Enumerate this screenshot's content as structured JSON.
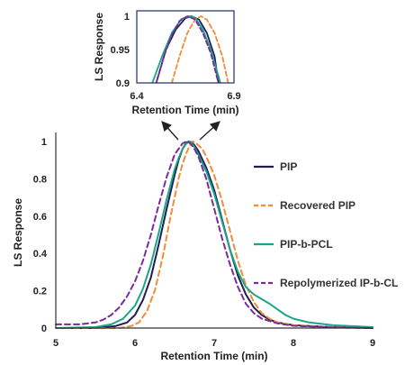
{
  "chart_data": [
    {
      "id": "main",
      "type": "line",
      "xlabel": "Retention Time (min)",
      "ylabel": "LS Response",
      "xlim": [
        5,
        9
      ],
      "ylim": [
        0,
        1
      ],
      "xticks": [
        5,
        6,
        7,
        8,
        9
      ],
      "yticks": [
        0,
        0.2,
        0.4,
        0.6,
        0.8,
        1
      ],
      "legend_position": "right",
      "grid": false,
      "series": [
        {
          "name": "PIP",
          "color": "#1f1f4f",
          "dash": "solid",
          "x": [
            5.0,
            5.5,
            5.75,
            5.9,
            6.0,
            6.1,
            6.2,
            6.3,
            6.4,
            6.5,
            6.55,
            6.6,
            6.65,
            6.68,
            6.72,
            6.75,
            6.8,
            6.9,
            7.0,
            7.1,
            7.2,
            7.3,
            7.4,
            7.5,
            7.6,
            7.7,
            7.8,
            8.0,
            8.5,
            9.0
          ],
          "y": [
            0.0,
            0.0,
            0.01,
            0.03,
            0.07,
            0.15,
            0.27,
            0.45,
            0.64,
            0.82,
            0.9,
            0.96,
            0.995,
            1.0,
            0.995,
            0.98,
            0.95,
            0.86,
            0.74,
            0.58,
            0.42,
            0.28,
            0.18,
            0.11,
            0.07,
            0.045,
            0.03,
            0.015,
            0.005,
            0.0
          ]
        },
        {
          "name": "Recovered PIP",
          "color": "#f08c3a",
          "dash": "dashed",
          "x": [
            5.0,
            5.5,
            5.8,
            5.95,
            6.05,
            6.15,
            6.25,
            6.35,
            6.45,
            6.55,
            6.6,
            6.65,
            6.7,
            6.73,
            6.76,
            6.8,
            6.85,
            6.9,
            7.0,
            7.1,
            7.2,
            7.3,
            7.4,
            7.5,
            7.6,
            7.7,
            7.8,
            8.0,
            8.5,
            9.0
          ],
          "y": [
            0.0,
            0.0,
            0.0,
            0.01,
            0.03,
            0.09,
            0.2,
            0.38,
            0.6,
            0.8,
            0.88,
            0.94,
            0.985,
            1.0,
            0.995,
            0.98,
            0.96,
            0.92,
            0.82,
            0.68,
            0.52,
            0.36,
            0.23,
            0.14,
            0.08,
            0.05,
            0.03,
            0.015,
            0.005,
            0.0
          ]
        },
        {
          "name": "PIP-b-PCL",
          "color": "#1aa58a",
          "dash": "solid",
          "x": [
            5.0,
            5.5,
            5.7,
            5.85,
            6.0,
            6.1,
            6.2,
            6.3,
            6.4,
            6.5,
            6.55,
            6.6,
            6.65,
            6.69,
            6.72,
            6.75,
            6.8,
            6.9,
            7.0,
            7.1,
            7.2,
            7.3,
            7.4,
            7.5,
            7.6,
            7.7,
            7.8,
            7.9,
            8.0,
            8.2,
            8.5,
            9.0
          ],
          "y": [
            0.0,
            0.005,
            0.02,
            0.05,
            0.12,
            0.21,
            0.34,
            0.51,
            0.69,
            0.85,
            0.91,
            0.96,
            0.99,
            1.0,
            0.99,
            0.97,
            0.93,
            0.84,
            0.72,
            0.57,
            0.42,
            0.3,
            0.22,
            0.18,
            0.155,
            0.13,
            0.1,
            0.07,
            0.05,
            0.03,
            0.015,
            0.005
          ]
        },
        {
          "name": "Repolymerized IP-b-CL",
          "color": "#7a2a9a",
          "dash": "dashed",
          "x": [
            5.0,
            5.3,
            5.5,
            5.6,
            5.7,
            5.8,
            5.9,
            6.0,
            6.1,
            6.2,
            6.3,
            6.4,
            6.5,
            6.6,
            6.65,
            6.7,
            6.75,
            6.8,
            6.9,
            7.0,
            7.1,
            7.2,
            7.3,
            7.4,
            7.5,
            7.6,
            7.8,
            8.0,
            8.5,
            9.0
          ],
          "y": [
            0.02,
            0.02,
            0.03,
            0.045,
            0.07,
            0.11,
            0.17,
            0.25,
            0.36,
            0.5,
            0.66,
            0.81,
            0.93,
            0.99,
            1.0,
            0.99,
            0.96,
            0.92,
            0.8,
            0.64,
            0.48,
            0.34,
            0.22,
            0.13,
            0.08,
            0.05,
            0.025,
            0.012,
            0.003,
            0.0
          ]
        }
      ]
    },
    {
      "id": "inset",
      "type": "line",
      "xlabel": "Retention Time (min)",
      "ylabel": "LS Response",
      "xlim": [
        6.4,
        6.9
      ],
      "ylim": [
        0.9,
        1
      ],
      "xticks": [
        6.4,
        6.9
      ],
      "yticks": [
        0.9,
        0.95,
        1
      ],
      "grid": false,
      "series": [
        {
          "color": "#1f1f4f",
          "dash": "solid",
          "x": [
            6.5,
            6.55,
            6.6,
            6.65,
            6.68,
            6.72,
            6.76,
            6.8,
            6.82
          ],
          "y": [
            0.9,
            0.95,
            0.98,
            0.997,
            1.0,
            0.995,
            0.975,
            0.94,
            0.9
          ]
        },
        {
          "color": "#f08c3a",
          "dash": "dashed",
          "x": [
            6.58,
            6.62,
            6.66,
            6.7,
            6.73,
            6.76,
            6.8,
            6.84,
            6.87
          ],
          "y": [
            0.9,
            0.94,
            0.975,
            0.995,
            1.0,
            0.995,
            0.975,
            0.94,
            0.9
          ]
        },
        {
          "color": "#1aa58a",
          "dash": "solid",
          "x": [
            6.48,
            6.53,
            6.58,
            6.63,
            6.67,
            6.7,
            6.74,
            6.78,
            6.83
          ],
          "y": [
            0.9,
            0.94,
            0.975,
            0.996,
            1.0,
            0.998,
            0.98,
            0.95,
            0.9
          ]
        },
        {
          "color": "#7a2a9a",
          "dash": "dashed",
          "x": [
            6.5,
            6.54,
            6.58,
            6.62,
            6.66,
            6.7,
            6.74,
            6.78,
            6.82
          ],
          "y": [
            0.9,
            0.94,
            0.972,
            0.993,
            1.0,
            0.995,
            0.975,
            0.945,
            0.9
          ]
        }
      ]
    }
  ]
}
